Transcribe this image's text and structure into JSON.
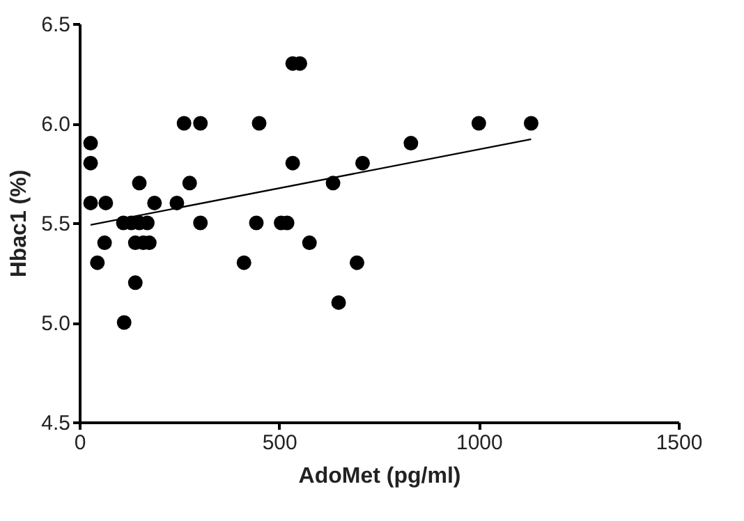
{
  "chart_data": {
    "type": "scatter",
    "xlabel": "AdoMet (pg/ml)",
    "ylabel": "Hbac1 (%)",
    "xlim": [
      0,
      1500
    ],
    "xticks": [
      0,
      500,
      1000,
      1500
    ],
    "ylim": [
      4.5,
      6.5
    ],
    "yticks": [
      4.5,
      {
        "value": 5,
        "label": "5.0"
      },
      5.5,
      {
        "value": 6,
        "label": "6.0"
      },
      6.5
    ],
    "grid": false,
    "series": [
      {
        "marker": "circle",
        "color": "#000000",
        "x": [
          28,
          28,
          28,
          66,
          45,
          63,
          112,
          140,
          150,
          110,
          130,
          150,
          170,
          140,
          160,
          175,
          188,
          244,
          262,
          303,
          276,
          303,
          412,
          443,
          450,
          505,
          520,
          534,
          534,
          552,
          576,
          635,
          649,
          695,
          709,
          830,
          1000,
          1131
        ],
        "values": [
          5.9,
          5.8,
          5.6,
          5.6,
          5.3,
          5.4,
          5.0,
          5.2,
          5.7,
          5.5,
          5.5,
          5.5,
          5.5,
          5.4,
          5.4,
          5.4,
          5.6,
          5.6,
          6.0,
          6.0,
          5.7,
          5.5,
          5.3,
          5.5,
          6.0,
          5.5,
          5.5,
          5.8,
          6.3,
          6.3,
          5.4,
          5.7,
          5.1,
          5.3,
          5.8,
          5.9,
          6.0,
          6.0
        ]
      },
      {
        "type": "line",
        "color": "#000000",
        "x": [
          28,
          1131
        ],
        "values": [
          5.49,
          5.92
        ]
      }
    ]
  }
}
